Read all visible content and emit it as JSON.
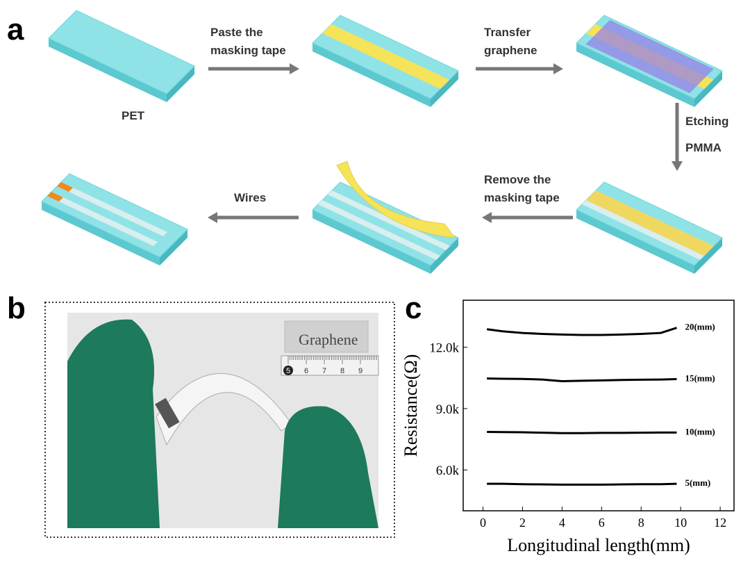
{
  "panels": {
    "a": "a",
    "b": "b",
    "c": "c"
  },
  "diagram": {
    "substrate": "PET",
    "steps": [
      [
        "Paste the",
        "masking tape"
      ],
      [
        "Transfer",
        "graphene"
      ],
      [
        "Etching",
        "PMMA"
      ],
      [
        "Remove the",
        "masking tape"
      ],
      [
        "Wires"
      ]
    ]
  },
  "photo": {
    "label": "Graphene",
    "ruler": [
      "5",
      "6",
      "7",
      "8",
      "9"
    ]
  },
  "chart_data": {
    "type": "line",
    "xlabel": "Longitudinal length(mm)",
    "ylabel": "Resistance(Ω)",
    "x": [
      0.2,
      1,
      2,
      3,
      4,
      5,
      6,
      7,
      8,
      9,
      9.8
    ],
    "series": [
      {
        "name": "20(mm)",
        "color": "#000000",
        "values": [
          12880,
          12780,
          12700,
          12650,
          12620,
          12600,
          12600,
          12620,
          12650,
          12700,
          12950
        ]
      },
      {
        "name": "15(mm)",
        "color": "#000000",
        "values": [
          10470,
          10460,
          10450,
          10420,
          10340,
          10360,
          10380,
          10400,
          10410,
          10420,
          10440
        ]
      },
      {
        "name": "10(mm)",
        "color": "#000000",
        "values": [
          7860,
          7850,
          7840,
          7820,
          7800,
          7800,
          7810,
          7810,
          7820,
          7830,
          7830
        ]
      },
      {
        "name": "5(mm)",
        "color": "#000000",
        "values": [
          5320,
          5320,
          5300,
          5290,
          5280,
          5280,
          5280,
          5290,
          5300,
          5300,
          5320
        ]
      }
    ],
    "xlim": [
      -1,
      12.7
    ],
    "ylim": [
      4000,
      14300
    ],
    "xticks": [
      0,
      2,
      4,
      6,
      8,
      10,
      12
    ],
    "yticks": [
      {
        "value": 6000,
        "label": "6.0k"
      },
      {
        "value": 9000,
        "label": "9.0k"
      },
      {
        "value": 12000,
        "label": "12.0k"
      }
    ]
  }
}
